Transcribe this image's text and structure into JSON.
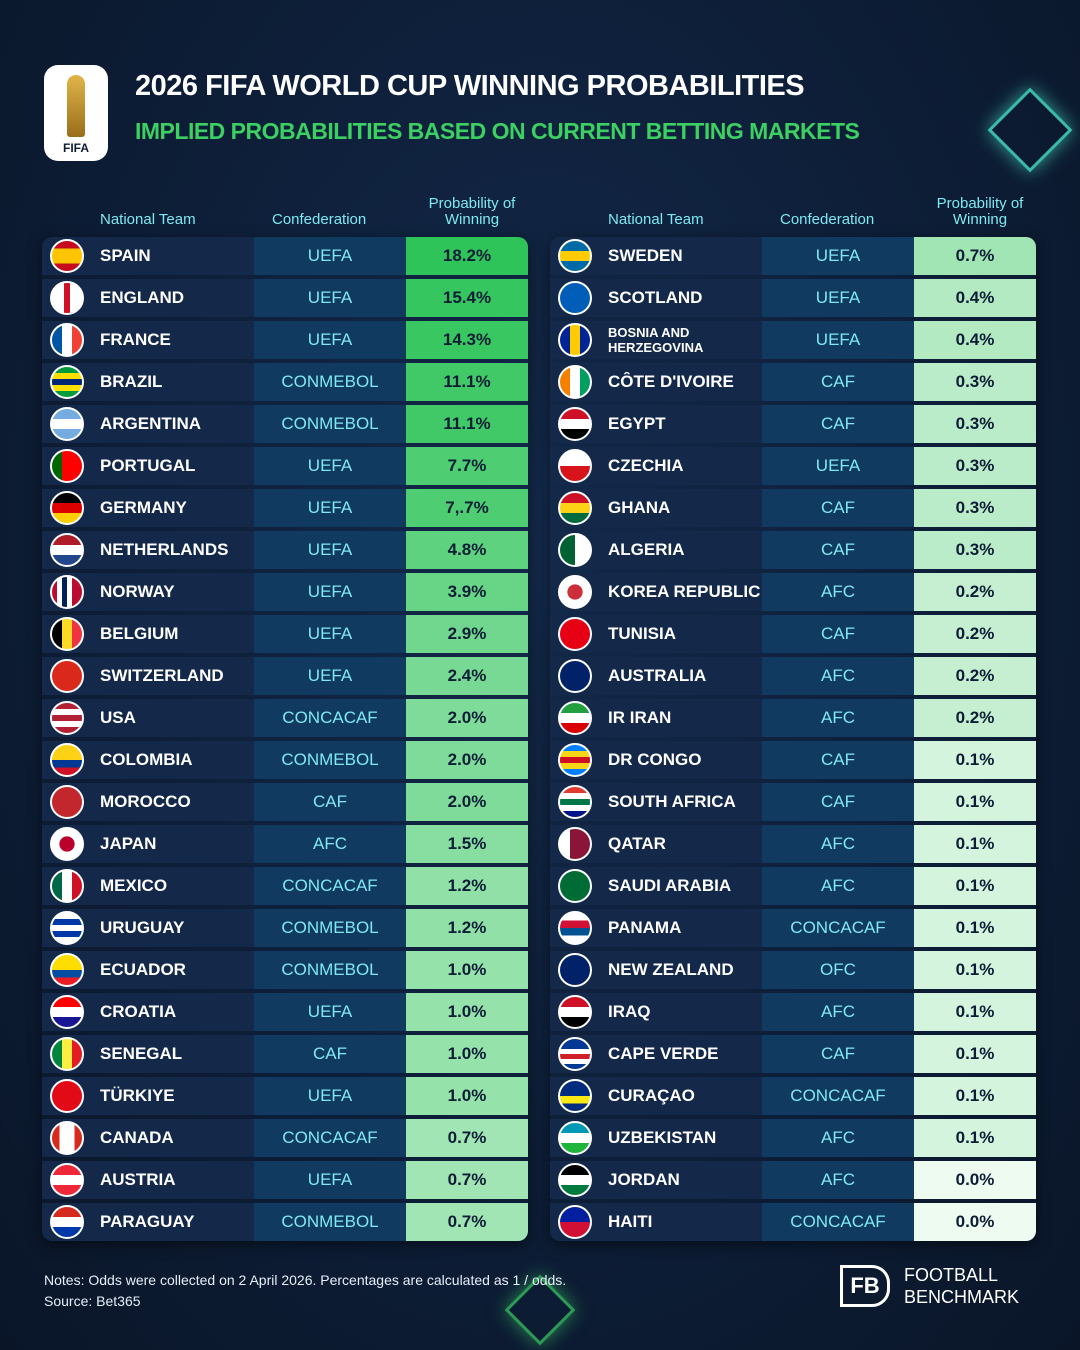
{
  "header": {
    "title": "2026 FIFA WORLD CUP WINNING PROBABILITIES",
    "subtitle": "IMPLIED PROBABILITIES BASED ON CURRENT BETTING MARKETS",
    "logo_text": "FIFA"
  },
  "columns": {
    "team": "National Team",
    "confederation": "Confederation",
    "probability": "Probability of Winning"
  },
  "left": [
    {
      "team": "SPAIN",
      "conf": "UEFA",
      "prob": "18.2%",
      "v": 18.2,
      "flag": [
        "h",
        "#c60b1e",
        "#ffc400",
        "#ffc400",
        "#c60b1e"
      ]
    },
    {
      "team": "ENGLAND",
      "conf": "UEFA",
      "prob": "15.4%",
      "v": 15.4,
      "flag": [
        "v",
        "#fff",
        "#fff",
        "#ce1124",
        "#fff",
        "#fff"
      ]
    },
    {
      "team": "FRANCE",
      "conf": "UEFA",
      "prob": "14.3%",
      "v": 14.3,
      "flag": [
        "v",
        "#0055a4",
        "#fff",
        "#ef4135"
      ]
    },
    {
      "team": "BRAZIL",
      "conf": "CONMEBOL",
      "prob": "11.1%",
      "v": 11.1,
      "flag": [
        "h",
        "#009c3b",
        "#ffdf00",
        "#002776",
        "#ffdf00",
        "#009c3b"
      ]
    },
    {
      "team": "ARGENTINA",
      "conf": "CONMEBOL",
      "prob": "11.1%",
      "v": 11.1,
      "flag": [
        "h",
        "#74acdf",
        "#fff",
        "#74acdf"
      ]
    },
    {
      "team": "PORTUGAL",
      "conf": "UEFA",
      "prob": "7.7%",
      "v": 7.7,
      "flag": [
        "v",
        "#006600",
        "#ff0000",
        "#ff0000"
      ]
    },
    {
      "team": "GERMANY",
      "conf": "UEFA",
      "prob": "7,.7%",
      "v": 7.7,
      "flag": [
        "h",
        "#000",
        "#dd0000",
        "#ffce00"
      ]
    },
    {
      "team": "NETHERLANDS",
      "conf": "UEFA",
      "prob": "4.8%",
      "v": 4.8,
      "flag": [
        "h",
        "#ae1c28",
        "#fff",
        "#21468b"
      ]
    },
    {
      "team": "NORWAY",
      "conf": "UEFA",
      "prob": "3.9%",
      "v": 3.9,
      "flag": [
        "v",
        "#ba0c2f",
        "#fff",
        "#00205b",
        "#fff",
        "#ba0c2f",
        "#ba0c2f"
      ]
    },
    {
      "team": "BELGIUM",
      "conf": "UEFA",
      "prob": "2.9%",
      "v": 2.9,
      "flag": [
        "v",
        "#000",
        "#fdda24",
        "#ef3340"
      ]
    },
    {
      "team": "SWITZERLAND",
      "conf": "UEFA",
      "prob": "2.4%",
      "v": 2.4,
      "flag": [
        "h",
        "#da291c"
      ]
    },
    {
      "team": "USA",
      "conf": "CONCACAF",
      "prob": "2.0%",
      "v": 2.0,
      "flag": [
        "h",
        "#b22234",
        "#fff",
        "#b22234",
        "#fff",
        "#b22234"
      ]
    },
    {
      "team": "COLOMBIA",
      "conf": "CONMEBOL",
      "prob": "2.0%",
      "v": 2.0,
      "flag": [
        "h",
        "#fcd116",
        "#fcd116",
        "#003893",
        "#ce1126"
      ]
    },
    {
      "team": "MOROCCO",
      "conf": "CAF",
      "prob": "2.0%",
      "v": 2.0,
      "flag": [
        "h",
        "#c1272d"
      ]
    },
    {
      "team": "JAPAN",
      "conf": "AFC",
      "prob": "1.5%",
      "v": 1.5,
      "flag": [
        "radial",
        "#bc002d",
        "#fff"
      ]
    },
    {
      "team": "MEXICO",
      "conf": "CONCACAF",
      "prob": "1.2%",
      "v": 1.2,
      "flag": [
        "v",
        "#006847",
        "#fff",
        "#ce1126"
      ]
    },
    {
      "team": "URUGUAY",
      "conf": "CONMEBOL",
      "prob": "1.2%",
      "v": 1.2,
      "flag": [
        "h",
        "#fff",
        "#0038a8",
        "#fff",
        "#0038a8",
        "#fff"
      ]
    },
    {
      "team": "ECUADOR",
      "conf": "CONMEBOL",
      "prob": "1.0%",
      "v": 1.0,
      "flag": [
        "h",
        "#ffdd00",
        "#ffdd00",
        "#034ea2",
        "#ed1c24"
      ]
    },
    {
      "team": "CROATIA",
      "conf": "UEFA",
      "prob": "1.0%",
      "v": 1.0,
      "flag": [
        "h",
        "#ff0000",
        "#fff",
        "#171796"
      ]
    },
    {
      "team": "SENEGAL",
      "conf": "CAF",
      "prob": "1.0%",
      "v": 1.0,
      "flag": [
        "v",
        "#00853f",
        "#fdef42",
        "#e31b23"
      ]
    },
    {
      "team": "TÜRKIYE",
      "conf": "UEFA",
      "prob": "1.0%",
      "v": 1.0,
      "flag": [
        "h",
        "#e30a17"
      ]
    },
    {
      "team": "CANADA",
      "conf": "CONCACAF",
      "prob": "0.7%",
      "v": 0.7,
      "flag": [
        "v",
        "#d52b1e",
        "#fff",
        "#fff",
        "#d52b1e"
      ]
    },
    {
      "team": "AUSTRIA",
      "conf": "UEFA",
      "prob": "0.7%",
      "v": 0.7,
      "flag": [
        "h",
        "#ed2939",
        "#fff",
        "#ed2939"
      ]
    },
    {
      "team": "PARAGUAY",
      "conf": "CONMEBOL",
      "prob": "0.7%",
      "v": 0.7,
      "flag": [
        "h",
        "#d52b1e",
        "#fff",
        "#0038a8"
      ]
    }
  ],
  "right": [
    {
      "team": "SWEDEN",
      "conf": "UEFA",
      "prob": "0.7%",
      "v": 0.7,
      "flag": [
        "h",
        "#006aa7",
        "#fecc00",
        "#006aa7"
      ]
    },
    {
      "team": "SCOTLAND",
      "conf": "UEFA",
      "prob": "0.4%",
      "v": 0.4,
      "flag": [
        "h",
        "#005eb8"
      ]
    },
    {
      "team": "BOSNIA AND HERZEGOVINA",
      "conf": "UEFA",
      "prob": "0.4%",
      "v": 0.4,
      "flag": [
        "v",
        "#002395",
        "#fecb00",
        "#002395"
      ]
    },
    {
      "team": "CÔTE D'IVOIRE",
      "conf": "CAF",
      "prob": "0.3%",
      "v": 0.3,
      "flag": [
        "v",
        "#f77f00",
        "#fff",
        "#009e60"
      ]
    },
    {
      "team": "EGYPT",
      "conf": "CAF",
      "prob": "0.3%",
      "v": 0.3,
      "flag": [
        "h",
        "#ce1126",
        "#fff",
        "#000"
      ]
    },
    {
      "team": "CZECHIA",
      "conf": "UEFA",
      "prob": "0.3%",
      "v": 0.3,
      "flag": [
        "h",
        "#fff",
        "#d7141a"
      ]
    },
    {
      "team": "GHANA",
      "conf": "CAF",
      "prob": "0.3%",
      "v": 0.3,
      "flag": [
        "h",
        "#ce1126",
        "#fcd116",
        "#006b3f"
      ]
    },
    {
      "team": "ALGERIA",
      "conf": "CAF",
      "prob": "0.3%",
      "v": 0.3,
      "flag": [
        "v",
        "#006233",
        "#fff"
      ]
    },
    {
      "team": "KOREA REPUBLIC",
      "conf": "AFC",
      "prob": "0.2%",
      "v": 0.2,
      "flag": [
        "radial",
        "#cd2e3a",
        "#fff"
      ]
    },
    {
      "team": "TUNISIA",
      "conf": "CAF",
      "prob": "0.2%",
      "v": 0.2,
      "flag": [
        "h",
        "#e70013"
      ]
    },
    {
      "team": "AUSTRALIA",
      "conf": "AFC",
      "prob": "0.2%",
      "v": 0.2,
      "flag": [
        "h",
        "#012169"
      ]
    },
    {
      "team": "IR IRAN",
      "conf": "AFC",
      "prob": "0.2%",
      "v": 0.2,
      "flag": [
        "h",
        "#239f40",
        "#fff",
        "#da0000"
      ]
    },
    {
      "team": "DR CONGO",
      "conf": "CAF",
      "prob": "0.1%",
      "v": 0.1,
      "flag": [
        "h",
        "#007fff",
        "#f7d618",
        "#ce1021",
        "#f7d618",
        "#007fff"
      ]
    },
    {
      "team": "SOUTH AFRICA",
      "conf": "CAF",
      "prob": "0.1%",
      "v": 0.1,
      "flag": [
        "h",
        "#e03c31",
        "#fff",
        "#007749",
        "#fff",
        "#001489"
      ]
    },
    {
      "team": "QATAR",
      "conf": "AFC",
      "prob": "0.1%",
      "v": 0.1,
      "flag": [
        "v",
        "#fff",
        "#8a1538",
        "#8a1538"
      ]
    },
    {
      "team": "SAUDI ARABIA",
      "conf": "AFC",
      "prob": "0.1%",
      "v": 0.1,
      "flag": [
        "h",
        "#006c35"
      ]
    },
    {
      "team": "PANAMA",
      "conf": "CONCACAF",
      "prob": "0.1%",
      "v": 0.1,
      "flag": [
        "h",
        "#fff",
        "#d21034",
        "#005293",
        "#fff"
      ]
    },
    {
      "team": "NEW ZEALAND",
      "conf": "OFC",
      "prob": "0.1%",
      "v": 0.1,
      "flag": [
        "h",
        "#012169"
      ]
    },
    {
      "team": "IRAQ",
      "conf": "AFC",
      "prob": "0.1%",
      "v": 0.1,
      "flag": [
        "h",
        "#ce1126",
        "#fff",
        "#000"
      ]
    },
    {
      "team": "CAPE VERDE",
      "conf": "CAF",
      "prob": "0.1%",
      "v": 0.1,
      "flag": [
        "h",
        "#003893",
        "#003893",
        "#fff",
        "#cf2027",
        "#fff",
        "#003893"
      ]
    },
    {
      "team": "CURAÇAO",
      "conf": "CONCACAF",
      "prob": "0.1%",
      "v": 0.1,
      "flag": [
        "h",
        "#002b7f",
        "#002b7f",
        "#f9e814",
        "#002b7f"
      ]
    },
    {
      "team": "UZBEKISTAN",
      "conf": "AFC",
      "prob": "0.1%",
      "v": 0.1,
      "flag": [
        "h",
        "#0099b5",
        "#fff",
        "#1eb53a"
      ]
    },
    {
      "team": "JORDAN",
      "conf": "AFC",
      "prob": "0.0%",
      "v": 0.0,
      "flag": [
        "h",
        "#000",
        "#fff",
        "#007a3d"
      ]
    },
    {
      "team": "HAITI",
      "conf": "CONCACAF",
      "prob": "0.0%",
      "v": 0.0,
      "flag": [
        "h",
        "#00209f",
        "#d21034"
      ]
    }
  ],
  "notes": {
    "line1": "Notes: Odds were collected on 2 April 2026. Percentages are calculated as 1 / odds.",
    "line2": "Source: Bet365"
  },
  "brand": {
    "mark": "FB",
    "line1": "FOOTBALL",
    "line2": "BENCHMARK"
  },
  "colors": {
    "prob_high": "#2fc45a",
    "prob_low": "#eefbf1",
    "accent": "#3ccf62",
    "header_text": "#7fe8f0"
  }
}
